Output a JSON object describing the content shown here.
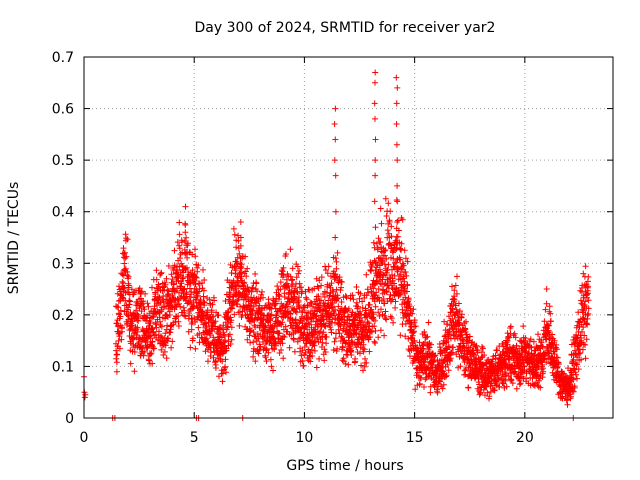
{
  "chart_data": {
    "type": "scatter",
    "title": "Day 300 of 2024, SRMTID for receiver yar2",
    "xlabel": "GPS time / hours",
    "ylabel": "SRMTID / TECUs",
    "xlim": [
      0,
      24
    ],
    "ylim": [
      0,
      0.7
    ],
    "x_ticks": [
      0,
      5,
      10,
      15,
      20
    ],
    "x_tick_labels": [
      "0",
      "5",
      "10",
      "15",
      "20"
    ],
    "y_ticks": [
      0,
      0.1,
      0.2,
      0.3,
      0.4,
      0.5,
      0.6,
      0.7
    ],
    "y_tick_labels": [
      "0",
      "0.1",
      "0.2",
      "0.3",
      "0.4",
      "0.5",
      "0.6",
      "0.7"
    ],
    "grid": true,
    "marker": "+",
    "color": "#ff0000",
    "trend_knots": [
      [
        0.0,
        0.07
      ],
      [
        0.05,
        0.04
      ],
      [
        1.5,
        0.16
      ],
      [
        1.7,
        0.24
      ],
      [
        1.9,
        0.28
      ],
      [
        2.1,
        0.18
      ],
      [
        2.5,
        0.19
      ],
      [
        3.0,
        0.15
      ],
      [
        3.3,
        0.22
      ],
      [
        3.8,
        0.19
      ],
      [
        4.2,
        0.24
      ],
      [
        4.5,
        0.29
      ],
      [
        4.8,
        0.25
      ],
      [
        5.2,
        0.21
      ],
      [
        5.6,
        0.18
      ],
      [
        6.0,
        0.15
      ],
      [
        6.3,
        0.13
      ],
      [
        6.6,
        0.22
      ],
      [
        7.0,
        0.28
      ],
      [
        7.4,
        0.21
      ],
      [
        7.8,
        0.2
      ],
      [
        8.2,
        0.18
      ],
      [
        8.6,
        0.17
      ],
      [
        9.0,
        0.21
      ],
      [
        9.5,
        0.23
      ],
      [
        10.0,
        0.17
      ],
      [
        10.5,
        0.19
      ],
      [
        11.0,
        0.2
      ],
      [
        11.4,
        0.24
      ],
      [
        11.8,
        0.17
      ],
      [
        12.2,
        0.18
      ],
      [
        12.6,
        0.16
      ],
      [
        13.0,
        0.22
      ],
      [
        13.4,
        0.28
      ],
      [
        13.8,
        0.31
      ],
      [
        14.2,
        0.29
      ],
      [
        14.5,
        0.27
      ],
      [
        14.8,
        0.17
      ],
      [
        15.2,
        0.1
      ],
      [
        15.6,
        0.12
      ],
      [
        16.0,
        0.08
      ],
      [
        16.4,
        0.13
      ],
      [
        16.8,
        0.2
      ],
      [
        17.2,
        0.14
      ],
      [
        17.6,
        0.11
      ],
      [
        18.0,
        0.09
      ],
      [
        18.4,
        0.08
      ],
      [
        18.8,
        0.1
      ],
      [
        19.2,
        0.12
      ],
      [
        19.6,
        0.11
      ],
      [
        20.0,
        0.12
      ],
      [
        20.4,
        0.1
      ],
      [
        20.8,
        0.12
      ],
      [
        21.0,
        0.18
      ],
      [
        21.3,
        0.12
      ],
      [
        21.6,
        0.07
      ],
      [
        22.0,
        0.06
      ],
      [
        22.4,
        0.14
      ],
      [
        22.6,
        0.19
      ],
      [
        22.9,
        0.22
      ]
    ],
    "spikes": [
      {
        "x": 4.6,
        "y": [
          0.29,
          0.32,
          0.36,
          0.41
        ]
      },
      {
        "x": 7.1,
        "y": [
          0.3,
          0.35,
          0.38
        ]
      },
      {
        "x": 11.4,
        "y": [
          0.31,
          0.35,
          0.4,
          0.47,
          0.5,
          0.54,
          0.57,
          0.6
        ]
      },
      {
        "x": 13.2,
        "y": [
          0.3,
          0.33,
          0.37,
          0.42,
          0.47,
          0.5,
          0.54,
          0.58,
          0.61,
          0.65,
          0.67
        ]
      },
      {
        "x": 14.2,
        "y": [
          0.34,
          0.38,
          0.42,
          0.45,
          0.5,
          0.53,
          0.57,
          0.61,
          0.64,
          0.66
        ]
      }
    ],
    "zero_points_x": [
      1.3,
      1.4,
      5.1,
      5.2,
      7.2,
      22.2
    ]
  }
}
